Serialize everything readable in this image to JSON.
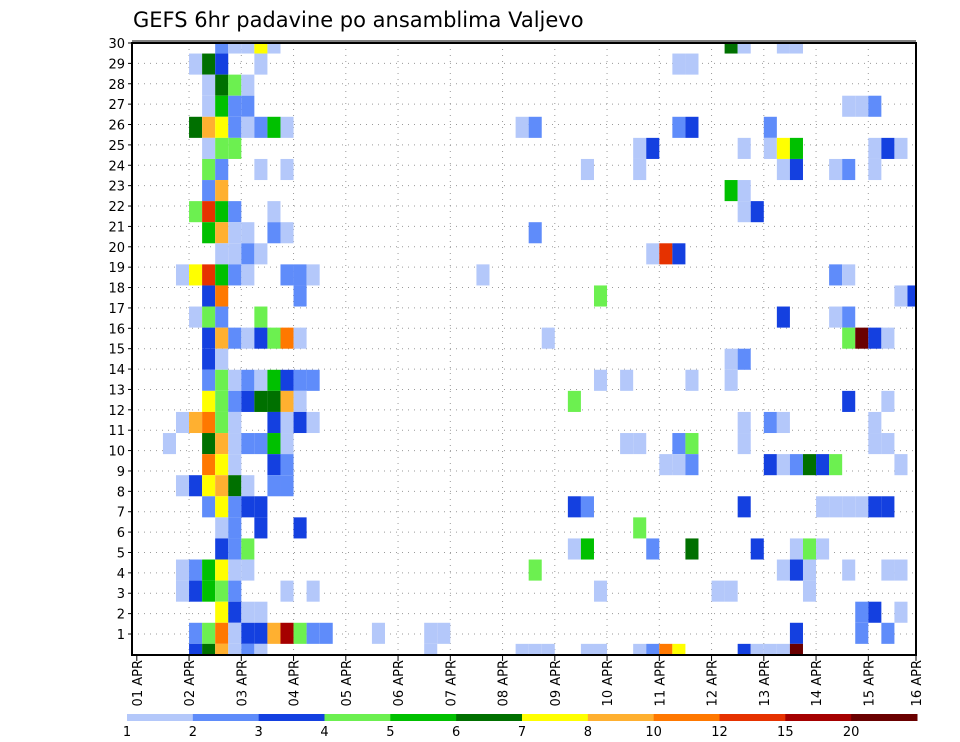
{
  "chart_data": {
    "type": "heatmap",
    "title": "GEFS 6hr padavine po ansamblima Valjevo",
    "xlabel": "",
    "ylabel": "",
    "x_unit": "6-hour step from 01 APR 00Z",
    "x_tick_labels": [
      "01 APR",
      "02 APR",
      "03 APR",
      "04 APR",
      "05 APR",
      "06 APR",
      "07 APR",
      "08 APR",
      "09 APR",
      "10 APR",
      "11 APR",
      "12 APR",
      "13 APR",
      "14 APR",
      "15 APR",
      "16 APR"
    ],
    "y_tick_labels": [
      "1",
      "2",
      "3",
      "4",
      "5",
      "6",
      "7",
      "8",
      "9",
      "10",
      "11",
      "12",
      "13",
      "14",
      "15",
      "16",
      "17",
      "18",
      "19",
      "20",
      "21",
      "22",
      "23",
      "24",
      "25",
      "26",
      "27",
      "28",
      "29",
      "30"
    ],
    "xlim_steps": [
      0,
      60
    ],
    "ylim_members": [
      1,
      30
    ],
    "grid": true,
    "legend": "bottom colorbar",
    "colorbar_labels": [
      "1",
      "2",
      "3",
      "4",
      "5",
      "6",
      "7",
      "8",
      "10",
      "12",
      "15",
      "20"
    ],
    "colors": [
      "#b4c8fa",
      "#5f8cfa",
      "#1440e0",
      "#6cf050",
      "#00c000",
      "#007000",
      "#ffff00",
      "#ffb030",
      "#ff7800",
      "#e63200",
      "#a50000",
      "#6a0000"
    ],
    "cells_format": "[step, member, color_level_index]",
    "cells": [
      [
        6,
        30,
        1
      ],
      [
        7,
        30,
        0
      ],
      [
        8,
        30,
        0
      ],
      [
        9,
        30,
        6
      ],
      [
        10,
        30,
        0
      ],
      [
        45,
        30,
        5
      ],
      [
        46,
        30,
        0
      ],
      [
        49,
        30,
        0
      ],
      [
        50,
        30,
        0
      ],
      [
        4,
        29,
        0
      ],
      [
        5,
        29,
        5
      ],
      [
        6,
        29,
        2
      ],
      [
        9,
        29,
        0
      ],
      [
        41,
        29,
        0
      ],
      [
        42,
        29,
        0
      ],
      [
        5,
        28,
        0
      ],
      [
        6,
        28,
        5
      ],
      [
        7,
        28,
        3
      ],
      [
        8,
        28,
        0
      ],
      [
        5,
        27,
        0
      ],
      [
        6,
        27,
        4
      ],
      [
        7,
        27,
        1
      ],
      [
        8,
        27,
        1
      ],
      [
        54,
        27,
        0
      ],
      [
        55,
        27,
        0
      ],
      [
        56,
        27,
        1
      ],
      [
        4,
        26,
        5
      ],
      [
        5,
        26,
        7
      ],
      [
        6,
        26,
        6
      ],
      [
        7,
        26,
        1
      ],
      [
        8,
        26,
        0
      ],
      [
        9,
        26,
        1
      ],
      [
        10,
        26,
        4
      ],
      [
        11,
        26,
        0
      ],
      [
        29,
        26,
        0
      ],
      [
        30,
        26,
        1
      ],
      [
        41,
        26,
        1
      ],
      [
        42,
        26,
        2
      ],
      [
        48,
        26,
        1
      ],
      [
        5,
        25,
        0
      ],
      [
        6,
        25,
        3
      ],
      [
        7,
        25,
        3
      ],
      [
        38,
        25,
        0
      ],
      [
        39,
        25,
        2
      ],
      [
        46,
        25,
        0
      ],
      [
        48,
        25,
        0
      ],
      [
        49,
        25,
        6
      ],
      [
        50,
        25,
        4
      ],
      [
        56,
        25,
        0
      ],
      [
        57,
        25,
        2
      ],
      [
        58,
        25,
        0
      ],
      [
        5,
        24,
        3
      ],
      [
        6,
        24,
        1
      ],
      [
        9,
        24,
        0
      ],
      [
        11,
        24,
        0
      ],
      [
        34,
        24,
        0
      ],
      [
        38,
        24,
        0
      ],
      [
        49,
        24,
        0
      ],
      [
        50,
        24,
        2
      ],
      [
        53,
        24,
        0
      ],
      [
        54,
        24,
        1
      ],
      [
        56,
        24,
        0
      ],
      [
        5,
        23,
        1
      ],
      [
        6,
        23,
        7
      ],
      [
        45,
        23,
        4
      ],
      [
        46,
        23,
        0
      ],
      [
        4,
        22,
        3
      ],
      [
        5,
        22,
        9
      ],
      [
        6,
        22,
        4
      ],
      [
        7,
        22,
        1
      ],
      [
        10,
        22,
        0
      ],
      [
        46,
        22,
        0
      ],
      [
        47,
        22,
        2
      ],
      [
        5,
        21,
        4
      ],
      [
        6,
        21,
        7
      ],
      [
        7,
        21,
        0
      ],
      [
        8,
        21,
        0
      ],
      [
        10,
        21,
        1
      ],
      [
        11,
        21,
        0
      ],
      [
        30,
        21,
        1
      ],
      [
        6,
        20,
        0
      ],
      [
        7,
        20,
        0
      ],
      [
        8,
        20,
        1
      ],
      [
        9,
        20,
        0
      ],
      [
        39,
        20,
        0
      ],
      [
        40,
        20,
        9
      ],
      [
        41,
        20,
        2
      ],
      [
        3,
        19,
        0
      ],
      [
        4,
        19,
        6
      ],
      [
        5,
        19,
        9
      ],
      [
        6,
        19,
        4
      ],
      [
        7,
        19,
        1
      ],
      [
        8,
        19,
        0
      ],
      [
        11,
        19,
        1
      ],
      [
        12,
        19,
        1
      ],
      [
        13,
        19,
        0
      ],
      [
        26,
        19,
        0
      ],
      [
        53,
        19,
        1
      ],
      [
        54,
        19,
        0
      ],
      [
        5,
        18,
        2
      ],
      [
        6,
        18,
        8
      ],
      [
        12,
        18,
        1
      ],
      [
        35,
        18,
        3
      ],
      [
        58,
        18,
        0
      ],
      [
        59,
        18,
        2
      ],
      [
        4,
        17,
        0
      ],
      [
        5,
        17,
        3
      ],
      [
        6,
        17,
        1
      ],
      [
        9,
        17,
        3
      ],
      [
        49,
        17,
        2
      ],
      [
        53,
        17,
        0
      ],
      [
        54,
        17,
        1
      ],
      [
        5,
        16,
        2
      ],
      [
        6,
        16,
        7
      ],
      [
        7,
        16,
        1
      ],
      [
        8,
        16,
        0
      ],
      [
        9,
        16,
        2
      ],
      [
        10,
        16,
        3
      ],
      [
        11,
        16,
        8
      ],
      [
        12,
        16,
        0
      ],
      [
        31,
        16,
        0
      ],
      [
        54,
        16,
        3
      ],
      [
        55,
        16,
        11
      ],
      [
        56,
        16,
        2
      ],
      [
        57,
        16,
        0
      ],
      [
        5,
        15,
        2
      ],
      [
        6,
        15,
        0
      ],
      [
        45,
        15,
        0
      ],
      [
        46,
        15,
        1
      ],
      [
        5,
        14,
        1
      ],
      [
        6,
        14,
        3
      ],
      [
        7,
        14,
        0
      ],
      [
        8,
        14,
        1
      ],
      [
        9,
        14,
        0
      ],
      [
        10,
        14,
        4
      ],
      [
        11,
        14,
        2
      ],
      [
        12,
        14,
        1
      ],
      [
        13,
        14,
        1
      ],
      [
        35,
        14,
        0
      ],
      [
        37,
        14,
        0
      ],
      [
        42,
        14,
        0
      ],
      [
        45,
        14,
        0
      ],
      [
        5,
        13,
        6
      ],
      [
        6,
        13,
        3
      ],
      [
        7,
        13,
        1
      ],
      [
        8,
        13,
        2
      ],
      [
        9,
        13,
        5
      ],
      [
        10,
        13,
        5
      ],
      [
        11,
        13,
        7
      ],
      [
        12,
        13,
        0
      ],
      [
        33,
        13,
        3
      ],
      [
        54,
        13,
        2
      ],
      [
        57,
        13,
        0
      ],
      [
        3,
        12,
        0
      ],
      [
        4,
        12,
        7
      ],
      [
        5,
        12,
        8
      ],
      [
        6,
        12,
        3
      ],
      [
        7,
        12,
        0
      ],
      [
        10,
        12,
        2
      ],
      [
        11,
        12,
        0
      ],
      [
        12,
        12,
        2
      ],
      [
        13,
        12,
        0
      ],
      [
        46,
        12,
        0
      ],
      [
        48,
        12,
        1
      ],
      [
        49,
        12,
        0
      ],
      [
        56,
        12,
        0
      ],
      [
        2,
        11,
        0
      ],
      [
        5,
        11,
        5
      ],
      [
        6,
        11,
        7
      ],
      [
        7,
        11,
        0
      ],
      [
        8,
        11,
        1
      ],
      [
        9,
        11,
        1
      ],
      [
        10,
        11,
        4
      ],
      [
        11,
        11,
        0
      ],
      [
        37,
        11,
        0
      ],
      [
        38,
        11,
        0
      ],
      [
        41,
        11,
        1
      ],
      [
        42,
        11,
        3
      ],
      [
        46,
        11,
        0
      ],
      [
        56,
        11,
        0
      ],
      [
        57,
        11,
        0
      ],
      [
        5,
        10,
        8
      ],
      [
        6,
        10,
        6
      ],
      [
        7,
        10,
        0
      ],
      [
        10,
        10,
        2
      ],
      [
        11,
        10,
        1
      ],
      [
        40,
        10,
        0
      ],
      [
        41,
        10,
        0
      ],
      [
        42,
        10,
        1
      ],
      [
        48,
        10,
        2
      ],
      [
        49,
        10,
        0
      ],
      [
        50,
        10,
        1
      ],
      [
        51,
        10,
        5
      ],
      [
        52,
        10,
        2
      ],
      [
        53,
        10,
        3
      ],
      [
        58,
        10,
        0
      ],
      [
        3,
        9,
        0
      ],
      [
        4,
        9,
        2
      ],
      [
        5,
        9,
        6
      ],
      [
        6,
        9,
        7
      ],
      [
        7,
        9,
        5
      ],
      [
        8,
        9,
        0
      ],
      [
        10,
        9,
        1
      ],
      [
        11,
        9,
        1
      ],
      [
        5,
        8,
        1
      ],
      [
        6,
        8,
        6
      ],
      [
        7,
        8,
        1
      ],
      [
        8,
        8,
        2
      ],
      [
        9,
        8,
        2
      ],
      [
        33,
        8,
        2
      ],
      [
        34,
        8,
        1
      ],
      [
        46,
        8,
        2
      ],
      [
        52,
        8,
        0
      ],
      [
        53,
        8,
        0
      ],
      [
        54,
        8,
        0
      ],
      [
        55,
        8,
        0
      ],
      [
        56,
        8,
        2
      ],
      [
        57,
        8,
        2
      ],
      [
        6,
        7,
        0
      ],
      [
        7,
        7,
        1
      ],
      [
        9,
        7,
        2
      ],
      [
        12,
        7,
        2
      ],
      [
        38,
        7,
        3
      ],
      [
        6,
        6,
        2
      ],
      [
        7,
        6,
        1
      ],
      [
        8,
        6,
        3
      ],
      [
        33,
        6,
        0
      ],
      [
        34,
        6,
        4
      ],
      [
        39,
        6,
        1
      ],
      [
        42,
        6,
        5
      ],
      [
        47,
        6,
        2
      ],
      [
        50,
        6,
        0
      ],
      [
        51,
        6,
        3
      ],
      [
        52,
        6,
        0
      ],
      [
        3,
        5,
        0
      ],
      [
        4,
        5,
        1
      ],
      [
        5,
        5,
        4
      ],
      [
        6,
        5,
        6
      ],
      [
        7,
        5,
        0
      ],
      [
        8,
        5,
        0
      ],
      [
        30,
        5,
        3
      ],
      [
        49,
        5,
        0
      ],
      [
        50,
        5,
        2
      ],
      [
        51,
        5,
        0
      ],
      [
        54,
        5,
        0
      ],
      [
        57,
        5,
        0
      ],
      [
        58,
        5,
        0
      ],
      [
        3,
        4,
        0
      ],
      [
        4,
        4,
        2
      ],
      [
        5,
        4,
        4
      ],
      [
        6,
        4,
        3
      ],
      [
        7,
        4,
        1
      ],
      [
        11,
        4,
        0
      ],
      [
        13,
        4,
        0
      ],
      [
        35,
        4,
        0
      ],
      [
        44,
        4,
        0
      ],
      [
        45,
        4,
        0
      ],
      [
        51,
        4,
        0
      ],
      [
        6,
        3,
        6
      ],
      [
        7,
        3,
        2
      ],
      [
        8,
        3,
        0
      ],
      [
        9,
        3,
        0
      ],
      [
        55,
        3,
        1
      ],
      [
        56,
        3,
        2
      ],
      [
        58,
        3,
        0
      ],
      [
        4,
        2,
        1
      ],
      [
        5,
        2,
        3
      ],
      [
        6,
        2,
        8
      ],
      [
        7,
        2,
        0
      ],
      [
        8,
        2,
        2
      ],
      [
        9,
        2,
        2
      ],
      [
        10,
        2,
        7
      ],
      [
        11,
        2,
        10
      ],
      [
        12,
        2,
        3
      ],
      [
        13,
        2,
        1
      ],
      [
        14,
        2,
        1
      ],
      [
        18,
        2,
        0
      ],
      [
        22,
        2,
        0
      ],
      [
        23,
        2,
        0
      ],
      [
        50,
        2,
        2
      ],
      [
        55,
        2,
        1
      ],
      [
        57,
        2,
        1
      ],
      [
        4,
        1,
        2
      ],
      [
        5,
        1,
        5
      ],
      [
        6,
        1,
        7
      ],
      [
        7,
        1,
        0
      ],
      [
        8,
        1,
        1
      ],
      [
        9,
        1,
        0
      ],
      [
        22,
        1,
        0
      ],
      [
        29,
        1,
        0
      ],
      [
        30,
        1,
        0
      ],
      [
        31,
        1,
        0
      ],
      [
        34,
        1,
        0
      ],
      [
        35,
        1,
        0
      ],
      [
        38,
        1,
        0
      ],
      [
        39,
        1,
        1
      ],
      [
        40,
        1,
        8
      ],
      [
        41,
        1,
        6
      ],
      [
        46,
        1,
        2
      ],
      [
        47,
        1,
        0
      ],
      [
        48,
        1,
        0
      ],
      [
        49,
        1,
        0
      ],
      [
        50,
        1,
        11
      ]
    ]
  }
}
